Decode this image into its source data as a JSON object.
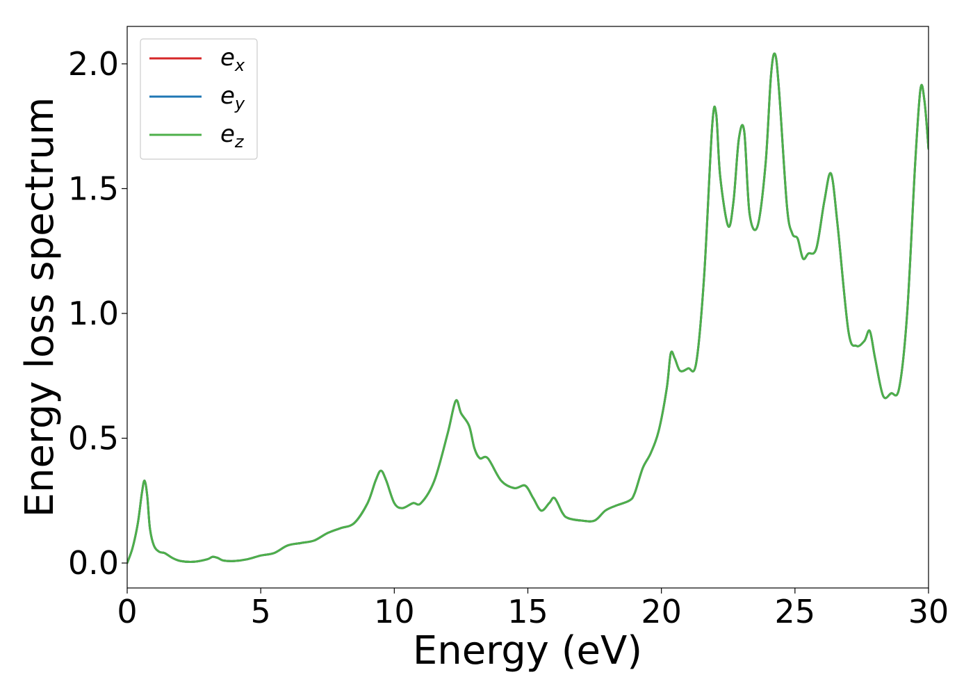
{
  "chart_data": {
    "type": "line",
    "title": "",
    "xlabel": "Energy (eV)",
    "ylabel": "Energy loss spectrum",
    "xlim": [
      0,
      30
    ],
    "ylim": [
      -0.1,
      2.15
    ],
    "xticks": [
      0,
      5,
      10,
      15,
      20,
      25,
      30
    ],
    "xtick_labels": [
      "0",
      "5",
      "10",
      "15",
      "20",
      "25",
      "30"
    ],
    "yticks": [
      0.0,
      0.5,
      1.0,
      1.5,
      2.0
    ],
    "ytick_labels": [
      "0.0",
      "0.5",
      "1.0",
      "1.5",
      "2.0"
    ],
    "grid": false,
    "legend_position": "top-left",
    "x": [
      0,
      0.2,
      0.4,
      0.55,
      0.65,
      0.75,
      0.85,
      1.0,
      1.2,
      1.4,
      1.7,
      2.0,
      2.5,
      3.0,
      3.2,
      3.4,
      3.6,
      4.0,
      4.5,
      5.0,
      5.5,
      6.0,
      6.5,
      7.0,
      7.5,
      8.0,
      8.5,
      9.0,
      9.3,
      9.5,
      9.7,
      10.0,
      10.3,
      10.7,
      11.0,
      11.5,
      12.0,
      12.3,
      12.5,
      12.8,
      13.0,
      13.2,
      13.5,
      14.0,
      14.5,
      14.9,
      15.2,
      15.5,
      15.8,
      16.0,
      16.3,
      16.5,
      17.0,
      17.5,
      17.9,
      18.3,
      18.8,
      19.0,
      19.3,
      19.6,
      19.9,
      20.2,
      20.35,
      20.5,
      20.7,
      21.0,
      21.3,
      21.6,
      21.9,
      22.05,
      22.2,
      22.5,
      22.7,
      22.9,
      23.1,
      23.3,
      23.6,
      23.9,
      24.1,
      24.25,
      24.4,
      24.7,
      24.9,
      25.1,
      25.3,
      25.5,
      25.8,
      26.1,
      26.35,
      26.6,
      27.0,
      27.3,
      27.6,
      27.8,
      28.0,
      28.3,
      28.6,
      28.9,
      29.2,
      29.5,
      29.7,
      29.85,
      30.0
    ],
    "series": [
      {
        "name": "e_x",
        "color": "#d62728",
        "values": [
          0,
          0.06,
          0.16,
          0.28,
          0.33,
          0.27,
          0.14,
          0.07,
          0.045,
          0.04,
          0.02,
          0.008,
          0.005,
          0.015,
          0.025,
          0.02,
          0.01,
          0.008,
          0.015,
          0.03,
          0.04,
          0.07,
          0.08,
          0.09,
          0.12,
          0.14,
          0.16,
          0.24,
          0.33,
          0.37,
          0.33,
          0.24,
          0.22,
          0.24,
          0.24,
          0.33,
          0.52,
          0.65,
          0.6,
          0.55,
          0.46,
          0.42,
          0.42,
          0.33,
          0.3,
          0.31,
          0.26,
          0.21,
          0.24,
          0.26,
          0.2,
          0.18,
          0.17,
          0.17,
          0.21,
          0.23,
          0.25,
          0.28,
          0.38,
          0.44,
          0.53,
          0.7,
          0.84,
          0.82,
          0.77,
          0.78,
          0.8,
          1.15,
          1.75,
          1.8,
          1.55,
          1.35,
          1.45,
          1.7,
          1.73,
          1.4,
          1.35,
          1.6,
          1.95,
          2.04,
          1.9,
          1.43,
          1.32,
          1.3,
          1.22,
          1.24,
          1.26,
          1.45,
          1.56,
          1.35,
          0.93,
          0.87,
          0.89,
          0.93,
          0.82,
          0.67,
          0.68,
          0.7,
          1.0,
          1.6,
          1.9,
          1.85,
          1.66
        ]
      },
      {
        "name": "e_y",
        "color": "#1f77b4",
        "values": [
          0,
          0.06,
          0.16,
          0.28,
          0.33,
          0.27,
          0.14,
          0.07,
          0.045,
          0.04,
          0.02,
          0.008,
          0.005,
          0.015,
          0.025,
          0.02,
          0.01,
          0.008,
          0.015,
          0.03,
          0.04,
          0.07,
          0.08,
          0.09,
          0.12,
          0.14,
          0.16,
          0.24,
          0.33,
          0.37,
          0.33,
          0.24,
          0.22,
          0.24,
          0.24,
          0.33,
          0.52,
          0.65,
          0.6,
          0.55,
          0.46,
          0.42,
          0.42,
          0.33,
          0.3,
          0.31,
          0.26,
          0.21,
          0.24,
          0.26,
          0.2,
          0.18,
          0.17,
          0.17,
          0.21,
          0.23,
          0.25,
          0.28,
          0.38,
          0.44,
          0.53,
          0.7,
          0.84,
          0.82,
          0.77,
          0.78,
          0.8,
          1.15,
          1.75,
          1.8,
          1.55,
          1.35,
          1.45,
          1.7,
          1.73,
          1.4,
          1.35,
          1.6,
          1.95,
          2.04,
          1.9,
          1.43,
          1.32,
          1.3,
          1.22,
          1.24,
          1.26,
          1.45,
          1.56,
          1.35,
          0.93,
          0.87,
          0.89,
          0.93,
          0.82,
          0.67,
          0.68,
          0.7,
          1.0,
          1.6,
          1.9,
          1.85,
          1.66
        ]
      },
      {
        "name": "e_z",
        "color": "#4daf4a",
        "values": [
          0,
          0.06,
          0.16,
          0.28,
          0.33,
          0.27,
          0.14,
          0.07,
          0.045,
          0.04,
          0.02,
          0.008,
          0.005,
          0.015,
          0.025,
          0.02,
          0.01,
          0.008,
          0.015,
          0.03,
          0.04,
          0.07,
          0.08,
          0.09,
          0.12,
          0.14,
          0.16,
          0.24,
          0.33,
          0.37,
          0.33,
          0.24,
          0.22,
          0.24,
          0.24,
          0.33,
          0.52,
          0.65,
          0.6,
          0.55,
          0.46,
          0.42,
          0.42,
          0.33,
          0.3,
          0.31,
          0.26,
          0.21,
          0.24,
          0.26,
          0.2,
          0.18,
          0.17,
          0.17,
          0.21,
          0.23,
          0.25,
          0.28,
          0.38,
          0.44,
          0.53,
          0.7,
          0.84,
          0.82,
          0.77,
          0.78,
          0.8,
          1.15,
          1.75,
          1.8,
          1.55,
          1.35,
          1.45,
          1.7,
          1.73,
          1.4,
          1.35,
          1.6,
          1.95,
          2.04,
          1.9,
          1.43,
          1.32,
          1.3,
          1.22,
          1.24,
          1.26,
          1.45,
          1.56,
          1.35,
          0.93,
          0.87,
          0.89,
          0.93,
          0.82,
          0.67,
          0.68,
          0.7,
          1.0,
          1.6,
          1.9,
          1.85,
          1.66
        ]
      }
    ],
    "legend": [
      {
        "base": "e",
        "sub": "x",
        "color": "#d62728"
      },
      {
        "base": "e",
        "sub": "y",
        "color": "#1f77b4"
      },
      {
        "base": "e",
        "sub": "z",
        "color": "#4daf4a"
      }
    ]
  }
}
